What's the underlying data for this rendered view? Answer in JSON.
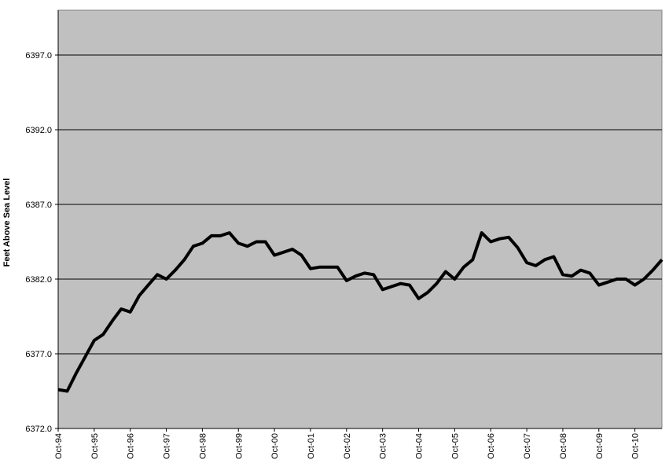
{
  "chart_data": {
    "type": "line",
    "y_label": "Feet Above Sea Level",
    "categories": [
      "Oct-94",
      null,
      null,
      null,
      "Oct-95",
      null,
      null,
      null,
      "Oct-96",
      null,
      null,
      null,
      "Oct-97",
      null,
      null,
      null,
      "Oct-98",
      null,
      null,
      null,
      "Oct-99",
      null,
      null,
      null,
      "Oct-00",
      null,
      null,
      null,
      "Oct-01",
      null,
      null,
      null,
      "Oct-02",
      null,
      null,
      null,
      "Oct-03",
      null,
      null,
      null,
      "Oct-04",
      null,
      null,
      null,
      "Oct-05",
      null,
      null,
      null,
      "Oct-06",
      null,
      null,
      null,
      "Oct-07",
      null,
      null,
      null,
      "Oct-08",
      null,
      null,
      null,
      "Oct-09",
      null,
      null,
      null,
      "Oct-10",
      null,
      null,
      null
    ],
    "values": [
      6374.6,
      6374.5,
      6375.7,
      6376.8,
      6377.9,
      6378.3,
      6379.2,
      6380.0,
      6379.8,
      6380.9,
      6381.6,
      6382.3,
      6382.0,
      6382.6,
      6383.3,
      6384.2,
      6384.4,
      6384.9,
      6384.9,
      6385.1,
      6384.4,
      6384.2,
      6384.5,
      6384.5,
      6383.6,
      6383.8,
      6384.0,
      6383.6,
      6382.7,
      6382.8,
      6382.8,
      6382.8,
      6381.9,
      6382.2,
      6382.4,
      6382.3,
      6381.3,
      6381.5,
      6381.7,
      6381.6,
      6380.7,
      6381.1,
      6381.7,
      6382.5,
      6382.0,
      6382.8,
      6383.3,
      6385.1,
      6384.5,
      6384.7,
      6384.8,
      6384.1,
      6383.1,
      6382.9,
      6383.3,
      6383.5,
      6382.3,
      6382.2,
      6382.6,
      6382.4,
      6381.6,
      6381.8,
      6382.0,
      6382.0,
      6381.6,
      6382.0,
      6382.6,
      6383.3
    ],
    "color": "#000000",
    "ylim": [
      6372,
      6400
    ],
    "yticks": [
      {
        "value": 6372,
        "label": "6372.0"
      },
      {
        "value": 6377,
        "label": "6377.0"
      },
      {
        "value": 6382,
        "label": "6382.0"
      },
      {
        "value": 6387,
        "label": "6387.0"
      },
      {
        "value": 6392,
        "label": "6392.0"
      },
      {
        "value": 6397,
        "label": "6397.0"
      }
    ],
    "grid": true,
    "plot_background": "#c0c0c0"
  }
}
